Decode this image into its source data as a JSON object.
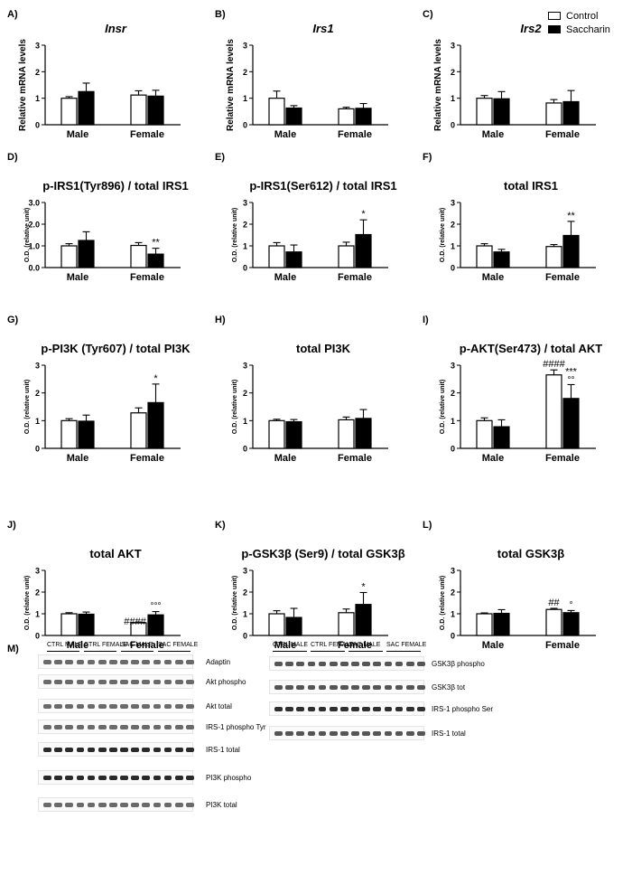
{
  "legend": {
    "control": "Control",
    "saccharin": "Saccharin",
    "control_color": "#ffffff",
    "saccharin_color": "#000000"
  },
  "chart_data": [
    {
      "id": "A)",
      "type": "bar",
      "title": "Insr",
      "italic": true,
      "ylabel": "Relative mRNA levels",
      "ylim": [
        0,
        3
      ],
      "yticks": [
        "0",
        "1",
        "2",
        "3"
      ],
      "categories": [
        "Male",
        "Female"
      ],
      "series": [
        {
          "name": "Control",
          "values": [
            1.0,
            1.12
          ],
          "errors": [
            0.06,
            0.16
          ]
        },
        {
          "name": "Saccharin",
          "values": [
            1.25,
            1.08
          ],
          "errors": [
            0.32,
            0.22
          ]
        }
      ],
      "annotations": []
    },
    {
      "id": "B)",
      "type": "bar",
      "title": "Irs1",
      "italic": true,
      "ylabel": "Relative mRNA levels",
      "ylim": [
        0,
        3
      ],
      "yticks": [
        "0",
        "1",
        "2",
        "3"
      ],
      "categories": [
        "Male",
        "Female"
      ],
      "series": [
        {
          "name": "Control",
          "values": [
            1.0,
            0.6
          ],
          "errors": [
            0.27,
            0.06
          ]
        },
        {
          "name": "Saccharin",
          "values": [
            0.63,
            0.62
          ],
          "errors": [
            0.09,
            0.18
          ]
        }
      ],
      "annotations": []
    },
    {
      "id": "C)",
      "type": "bar",
      "title": "Irs2",
      "italic": true,
      "ylabel": "Relative mRNA levels",
      "ylim": [
        0,
        3
      ],
      "yticks": [
        "0",
        "1",
        "2",
        "3"
      ],
      "categories": [
        "Male",
        "Female"
      ],
      "series": [
        {
          "name": "Control",
          "values": [
            1.0,
            0.82
          ],
          "errors": [
            0.1,
            0.13
          ]
        },
        {
          "name": "Saccharin",
          "values": [
            0.98,
            0.87
          ],
          "errors": [
            0.27,
            0.42
          ]
        }
      ],
      "annotations": []
    },
    {
      "id": "D)",
      "type": "bar",
      "title": "p-IRS1(Tyr896) / total IRS1",
      "italic": false,
      "ylabel": "O.D. (relative unit)",
      "ylim": [
        0,
        3
      ],
      "yticks": [
        "0.0",
        "1.0",
        "2.0",
        "3.0"
      ],
      "categories": [
        "Male",
        "Female"
      ],
      "series": [
        {
          "name": "Control",
          "values": [
            1.0,
            1.02
          ],
          "errors": [
            0.1,
            0.13
          ]
        },
        {
          "name": "Saccharin",
          "values": [
            1.25,
            0.62
          ],
          "errors": [
            0.4,
            0.27
          ]
        }
      ],
      "annotations": [
        {
          "series": 1,
          "category": 1,
          "text": "**"
        }
      ]
    },
    {
      "id": "E)",
      "type": "bar",
      "title": "p-IRS1(Ser612) / total IRS1",
      "italic": false,
      "ylabel": "O.D. (relative unit)",
      "ylim": [
        0,
        3
      ],
      "yticks": [
        "0",
        "1",
        "2",
        "3"
      ],
      "categories": [
        "Male",
        "Female"
      ],
      "series": [
        {
          "name": "Control",
          "values": [
            1.0,
            1.0
          ],
          "errors": [
            0.15,
            0.17
          ]
        },
        {
          "name": "Saccharin",
          "values": [
            0.72,
            1.52
          ],
          "errors": [
            0.32,
            0.68
          ]
        }
      ],
      "annotations": [
        {
          "series": 1,
          "category": 1,
          "text": "*"
        }
      ]
    },
    {
      "id": "F)",
      "type": "bar",
      "title": "total IRS1",
      "italic": false,
      "ylabel": "O.D. (relative unit)",
      "ylim": [
        0,
        3
      ],
      "yticks": [
        "0",
        "1",
        "2",
        "3"
      ],
      "categories": [
        "Male",
        "Female"
      ],
      "series": [
        {
          "name": "Control",
          "values": [
            1.0,
            0.97
          ],
          "errors": [
            0.1,
            0.09
          ]
        },
        {
          "name": "Saccharin",
          "values": [
            0.72,
            1.48
          ],
          "errors": [
            0.12,
            0.65
          ]
        }
      ],
      "annotations": [
        {
          "series": 1,
          "category": 1,
          "text": "**"
        }
      ]
    },
    {
      "id": "G)",
      "type": "bar",
      "title": "p-PI3K (Tyr607) / total PI3K",
      "italic": false,
      "ylabel": "O.D. (relative unit)",
      "ylim": [
        0,
        3
      ],
      "yticks": [
        "0",
        "1",
        "2",
        "3"
      ],
      "categories": [
        "Male",
        "Female"
      ],
      "series": [
        {
          "name": "Control",
          "values": [
            1.0,
            1.28
          ],
          "errors": [
            0.07,
            0.18
          ]
        },
        {
          "name": "Saccharin",
          "values": [
            0.98,
            1.65
          ],
          "errors": [
            0.22,
            0.67
          ]
        }
      ],
      "annotations": [
        {
          "series": 1,
          "category": 1,
          "text": "*"
        }
      ]
    },
    {
      "id": "H)",
      "type": "bar",
      "title": "total PI3K",
      "italic": false,
      "ylabel": "O.D. (relative unit)",
      "ylim": [
        0,
        3
      ],
      "yticks": [
        "0",
        "1",
        "2",
        "3"
      ],
      "categories": [
        "Male",
        "Female"
      ],
      "series": [
        {
          "name": "Control",
          "values": [
            1.0,
            1.03
          ],
          "errors": [
            0.05,
            0.1
          ]
        },
        {
          "name": "Saccharin",
          "values": [
            0.96,
            1.08
          ],
          "errors": [
            0.08,
            0.32
          ]
        }
      ],
      "annotations": []
    },
    {
      "id": "I)",
      "type": "bar",
      "title": "p-AKT(Ser473) / total AKT",
      "italic": false,
      "ylabel": "O.D. (relative unit)",
      "ylim": [
        0,
        3
      ],
      "yticks": [
        "0",
        "1",
        "2",
        "3"
      ],
      "categories": [
        "Male",
        "Female"
      ],
      "series": [
        {
          "name": "Control",
          "values": [
            1.0,
            2.65
          ],
          "errors": [
            0.1,
            0.18
          ]
        },
        {
          "name": "Saccharin",
          "values": [
            0.78,
            1.8
          ],
          "errors": [
            0.25,
            0.5
          ]
        }
      ],
      "annotations": [
        {
          "series": 0,
          "category": 1,
          "text": "####"
        },
        {
          "series": 1,
          "category": 1,
          "text": "***",
          "text2": "°°"
        }
      ]
    },
    {
      "id": "J)",
      "type": "bar",
      "title": "total AKT",
      "italic": false,
      "ylabel": "O.D. (relative unit)",
      "ylim": [
        0,
        3
      ],
      "yticks": [
        "0",
        "1",
        "2",
        "3"
      ],
      "categories": [
        "Male",
        "Female"
      ],
      "series": [
        {
          "name": "Control",
          "values": [
            1.0,
            0.58
          ],
          "errors": [
            0.05,
            0.04
          ]
        },
        {
          "name": "Saccharin",
          "values": [
            0.98,
            0.95
          ],
          "errors": [
            0.1,
            0.15
          ]
        }
      ],
      "annotations": [
        {
          "series": 0,
          "category": 1,
          "text": "####",
          "inline": true
        },
        {
          "series": 1,
          "category": 1,
          "text": "°°°"
        }
      ]
    },
    {
      "id": "K)",
      "type": "bar",
      "title": "p-GSK3β (Ser9) / total GSK3β",
      "italic": false,
      "ylabel": "O.D. (relative unit)",
      "ylim": [
        0,
        3
      ],
      "yticks": [
        "0",
        "1",
        "2",
        "3"
      ],
      "categories": [
        "Male",
        "Female"
      ],
      "series": [
        {
          "name": "Control",
          "values": [
            1.0,
            1.05
          ],
          "errors": [
            0.14,
            0.17
          ]
        },
        {
          "name": "Saccharin",
          "values": [
            0.83,
            1.43
          ],
          "errors": [
            0.42,
            0.55
          ]
        }
      ],
      "annotations": [
        {
          "series": 1,
          "category": 1,
          "text": "*"
        }
      ]
    },
    {
      "id": "L)",
      "type": "bar",
      "title": "total GSK3β",
      "italic": false,
      "ylabel": "O.D. (relative unit)",
      "ylim": [
        0,
        3
      ],
      "yticks": [
        "0",
        "1",
        "2",
        "3"
      ],
      "categories": [
        "Male",
        "Female"
      ],
      "series": [
        {
          "name": "Control",
          "values": [
            1.0,
            1.2
          ],
          "errors": [
            0.04,
            0.05
          ]
        },
        {
          "name": "Saccharin",
          "values": [
            1.02,
            1.05
          ],
          "errors": [
            0.17,
            0.1
          ]
        }
      ],
      "annotations": [
        {
          "series": 0,
          "category": 1,
          "text": "##"
        },
        {
          "series": 1,
          "category": 1,
          "text": "°"
        }
      ]
    }
  ],
  "blots": {
    "panel_label": "M)",
    "group_labels": [
      "CTRL MALE",
      "CTRL FEMALE",
      "SAC MALE",
      "SAC FEMALE"
    ],
    "left_bands": [
      "Adaptin",
      "Akt phospho",
      "Akt total",
      "IRS-1 phospho Tyr",
      "IRS-1 total",
      "PI3K phospho",
      "PI3K total"
    ],
    "right_bands": [
      "GSK3β phospho",
      "GSK3β tot",
      "IRS-1 phospho Ser",
      "IRS-1 total"
    ]
  }
}
